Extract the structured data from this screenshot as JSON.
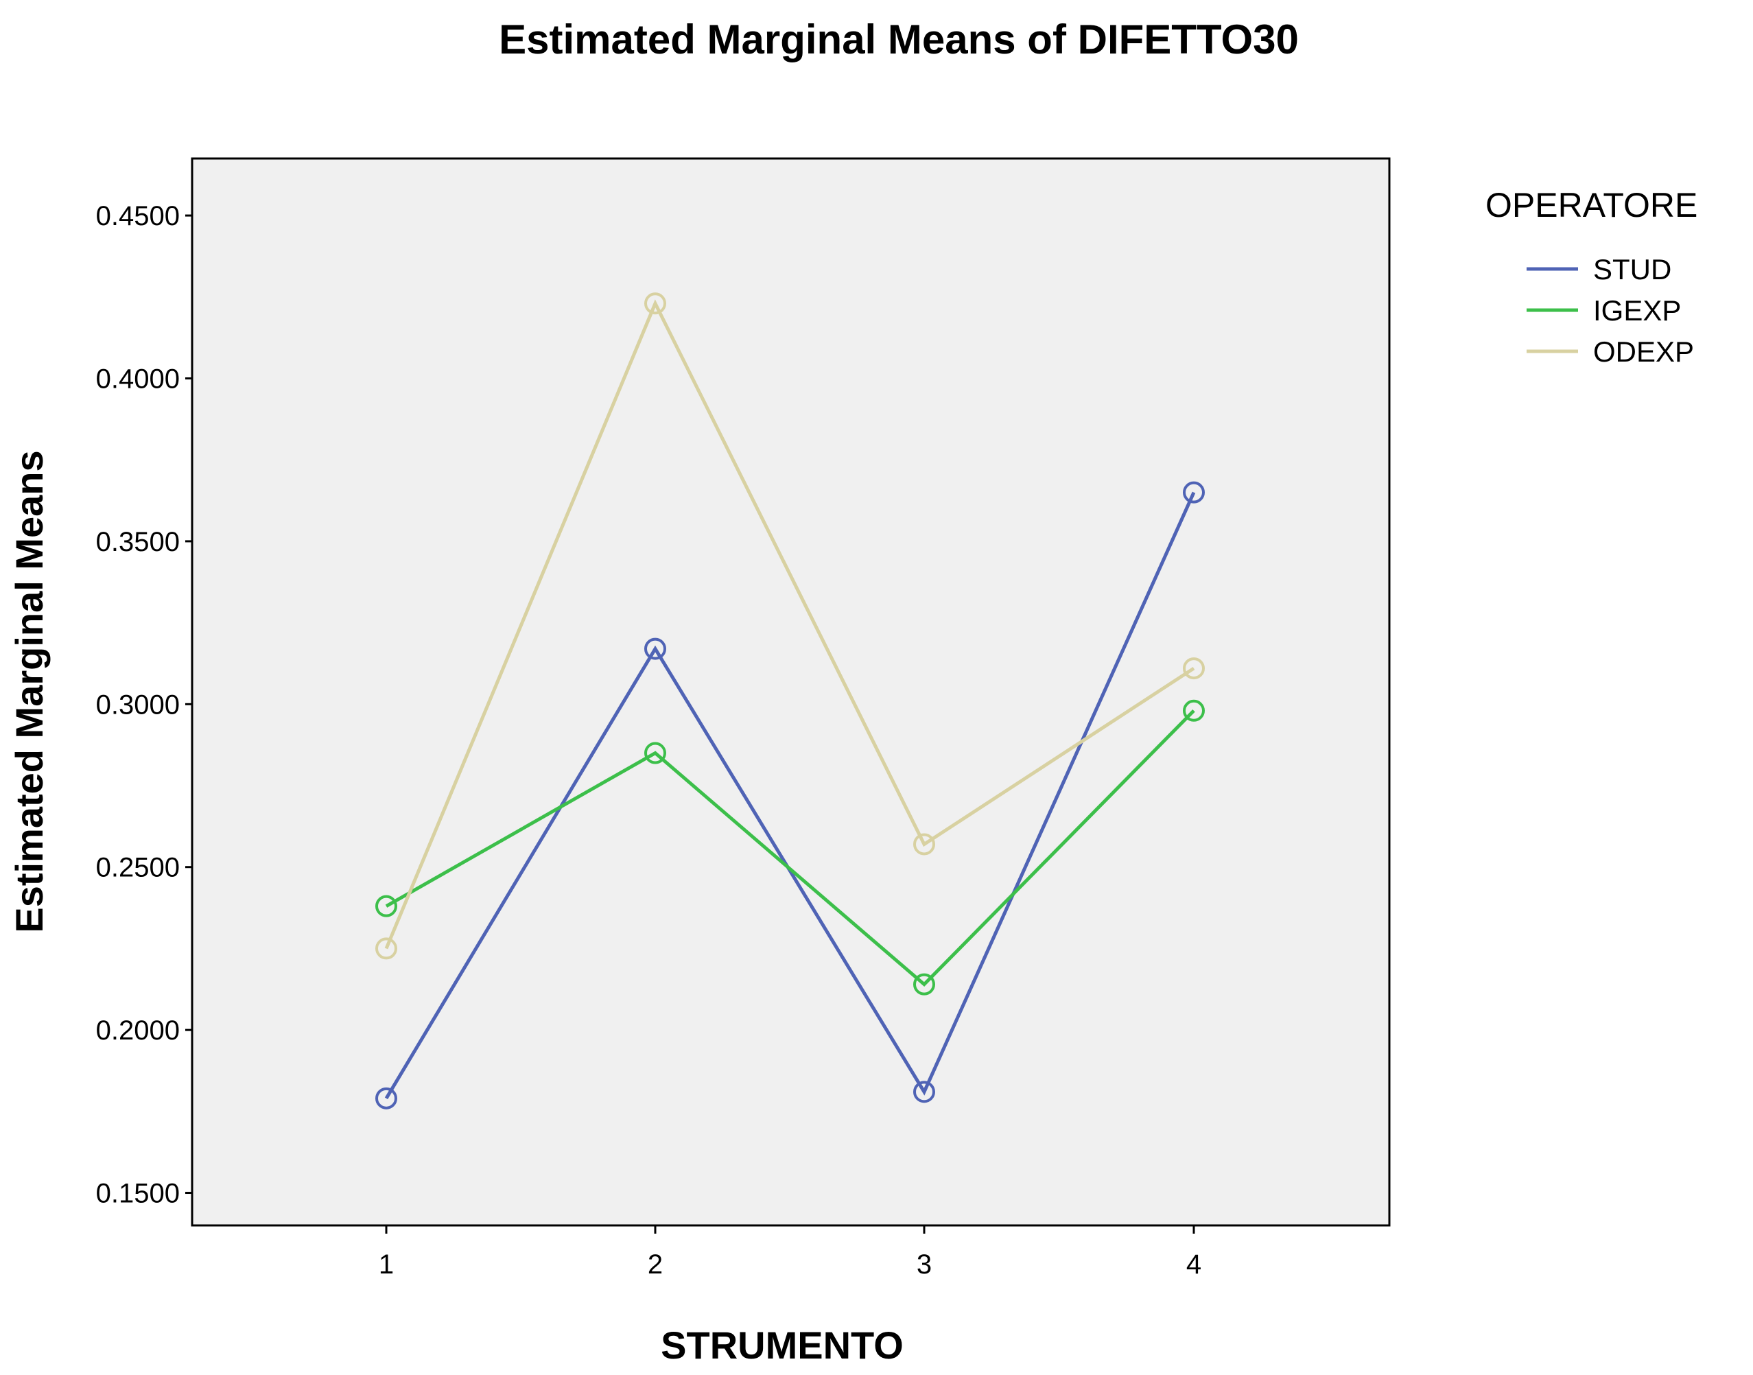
{
  "chart_data": {
    "type": "line",
    "title": "Estimated Marginal Means of DIFETTO30",
    "xlabel": "STRUMENTO",
    "ylabel": "Estimated Marginal Means",
    "categories": [
      "1",
      "2",
      "3",
      "4"
    ],
    "ylim": [
      0.14,
      0.4675
    ],
    "yticks": [
      "0.1500",
      "0.2000",
      "0.2500",
      "0.3000",
      "0.3500",
      "0.4000",
      "0.4500"
    ],
    "grid": false,
    "legend_title": "OPERATORE",
    "legend_position": "right",
    "series": [
      {
        "name": "STUD",
        "color": "#4f63b5",
        "values": [
          0.179,
          0.317,
          0.181,
          0.365
        ]
      },
      {
        "name": "IGEXP",
        "color": "#3cbf4a",
        "values": [
          0.238,
          0.285,
          0.214,
          0.298
        ]
      },
      {
        "name": "ODEXP",
        "color": "#d8d1a1",
        "values": [
          0.225,
          0.423,
          0.257,
          0.311
        ]
      }
    ],
    "plot_background": "#f0f0f0",
    "marker": "open-circle"
  }
}
